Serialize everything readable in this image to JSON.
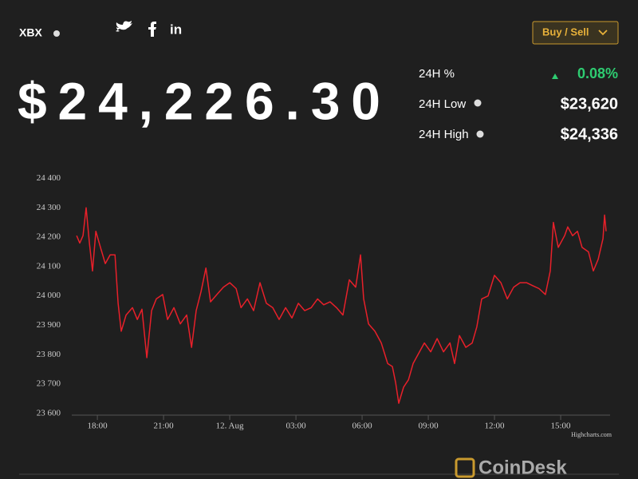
{
  "header": {
    "symbol": "XBX",
    "button": "Buy / Sell",
    "price": "$24,226.30",
    "stats": [
      {
        "label": "24H %",
        "value": "0.08%"
      },
      {
        "label": "24H Low",
        "value": "$23,620"
      },
      {
        "label": "24H High",
        "value": "$24,336"
      }
    ]
  },
  "chart_data": {
    "type": "line",
    "credits": "Highcharts.com",
    "x": [
      17.06,
      17.2,
      17.35,
      17.49,
      17.64,
      17.78,
      17.93,
      18.14,
      18.36,
      18.58,
      18.8,
      18.94,
      19.08,
      19.3,
      19.59,
      19.81,
      20.02,
      20.24,
      20.46,
      20.67,
      20.96,
      21.18,
      21.47,
      21.76,
      22.05,
      22.27,
      22.48,
      22.7,
      22.92,
      23.13,
      23.42,
      23.71,
      24.0,
      24.29,
      24.51,
      24.8,
      25.08,
      25.37,
      25.66,
      25.95,
      26.24,
      26.53,
      26.82,
      27.11,
      27.4,
      27.69,
      27.98,
      28.26,
      28.55,
      28.84,
      29.13,
      29.42,
      29.71,
      29.93,
      30.07,
      30.29,
      30.58,
      30.87,
      31.16,
      31.37,
      31.52,
      31.66,
      31.88,
      32.1,
      32.31,
      32.53,
      32.82,
      33.11,
      33.4,
      33.69,
      33.98,
      34.19,
      34.41,
      34.7,
      34.99,
      35.2,
      35.42,
      35.71,
      36.0,
      36.29,
      36.58,
      36.87,
      37.16,
      37.45,
      37.73,
      38.02,
      38.31,
      38.53,
      38.67,
      38.89,
      39.18,
      39.32,
      39.54,
      39.76,
      39.97,
      40.26,
      40.48,
      40.7,
      40.92,
      40.99,
      41.06
    ],
    "series": [
      {
        "color": "#e8202a",
        "values": [
          24205,
          24180,
          24205,
          24300,
          24180,
          24085,
          24220,
          24165,
          24110,
          24140,
          24140,
          23975,
          23880,
          23935,
          23960,
          23920,
          23955,
          23790,
          23950,
          23990,
          24005,
          23920,
          23960,
          23905,
          23935,
          23825,
          23950,
          24015,
          24095,
          23980,
          24005,
          24030,
          24045,
          24025,
          23960,
          23990,
          23950,
          24045,
          23975,
          23960,
          23920,
          23960,
          23925,
          23975,
          23950,
          23960,
          23990,
          23970,
          23980,
          23960,
          23935,
          24055,
          24030,
          24140,
          23990,
          23905,
          23880,
          23840,
          23770,
          23760,
          23705,
          23635,
          23690,
          23715,
          23770,
          23800,
          23840,
          23810,
          23855,
          23810,
          23840,
          23770,
          23865,
          23825,
          23840,
          23895,
          23990,
          24000,
          24070,
          24045,
          23990,
          24030,
          24045,
          24045,
          24035,
          24025,
          24005,
          24085,
          24250,
          24165,
          24205,
          24235,
          24205,
          24220,
          24165,
          24150,
          24085,
          24125,
          24195,
          24275,
          24220
        ]
      }
    ],
    "xlim": [
      16.84,
      41.24
    ],
    "ylim": [
      23600,
      24450
    ],
    "xticks": [
      {
        "value": 18,
        "label": "18:00"
      },
      {
        "value": 21,
        "label": "21:00"
      },
      {
        "value": 24,
        "label": "12. Aug"
      },
      {
        "value": 27,
        "label": "03:00"
      },
      {
        "value": 30,
        "label": "06:00"
      },
      {
        "value": 33,
        "label": "09:00"
      },
      {
        "value": 36,
        "label": "12:00"
      },
      {
        "value": 39,
        "label": "15:00"
      }
    ],
    "yticks": [
      {
        "value": 23600,
        "label": "23 600"
      },
      {
        "value": 23700,
        "label": "23 700"
      },
      {
        "value": 23800,
        "label": "23 800"
      },
      {
        "value": 23900,
        "label": "23 900"
      },
      {
        "value": 24000,
        "label": "24 000"
      },
      {
        "value": 24100,
        "label": "24 100"
      },
      {
        "value": 24200,
        "label": "24 200"
      },
      {
        "value": 24300,
        "label": "24 300"
      },
      {
        "value": 24400,
        "label": "24 400"
      }
    ]
  },
  "footer": {
    "logo": "CoinDesk"
  }
}
